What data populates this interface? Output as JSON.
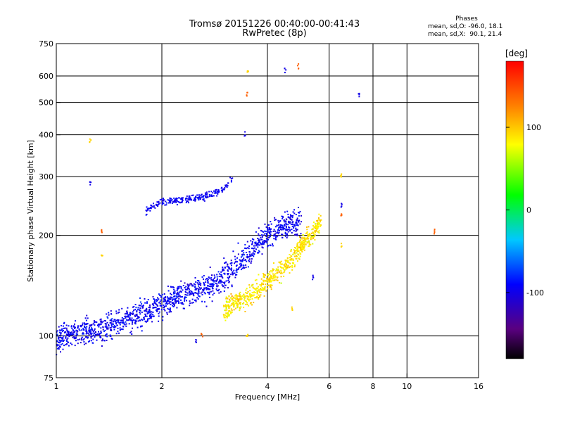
{
  "header": {
    "title_line1": "Tromsø 20151226 00:40:00-00:41:43",
    "title_line2": "RwPretec (8p)",
    "phases_label": "Phases",
    "phase_o": "mean, sd,O: -96.0, 18.1",
    "phase_x": "mean, sd,X:  90.1, 21.4"
  },
  "colorbar": {
    "unit": "[deg]",
    "ticks": [
      "100",
      "0",
      "-100"
    ],
    "tick_values": [
      100,
      0,
      -100
    ],
    "range": [
      -180,
      180
    ]
  },
  "chart_data": {
    "type": "scatter",
    "title": "",
    "xlabel": "Frequency [MHz]",
    "ylabel": "Stationary phase Virtual Height [km]",
    "x_scale": "log",
    "y_scale": "log",
    "xlim": [
      1,
      16
    ],
    "ylim": [
      75,
      750
    ],
    "x_ticks": [
      1,
      2,
      4,
      6,
      8,
      10,
      16
    ],
    "x_tick_labels": [
      "1",
      "2",
      "4",
      "6",
      "8",
      "10",
      "16"
    ],
    "y_ticks": [
      75,
      100,
      200,
      300,
      400,
      500,
      600,
      750
    ],
    "y_tick_labels": [
      "75",
      "100",
      "200",
      "300",
      "400",
      "500",
      "600",
      "750"
    ],
    "grid": true,
    "color_encoding": "phase in degrees (rainbow, -180 black to +180 red)",
    "o_mode_trace": [
      [
        1.0,
        97
      ],
      [
        1.05,
        100
      ],
      [
        1.12,
        101
      ],
      [
        1.2,
        102
      ],
      [
        1.3,
        104
      ],
      [
        1.45,
        108
      ],
      [
        1.6,
        112
      ],
      [
        1.8,
        118
      ],
      [
        2.0,
        125
      ],
      [
        2.2,
        132
      ],
      [
        2.5,
        137
      ],
      [
        2.8,
        143
      ],
      [
        3.0,
        150
      ],
      [
        3.2,
        160
      ],
      [
        3.4,
        170
      ],
      [
        3.6,
        180
      ],
      [
        3.8,
        192
      ],
      [
        4.0,
        200
      ],
      [
        4.3,
        210
      ],
      [
        4.6,
        215
      ],
      [
        5.0,
        220
      ]
    ],
    "x_mode_trace": [
      [
        3.0,
        120
      ],
      [
        3.2,
        125
      ],
      [
        3.5,
        130
      ],
      [
        3.8,
        138
      ],
      [
        4.0,
        145
      ],
      [
        4.3,
        155
      ],
      [
        4.6,
        165
      ],
      [
        4.9,
        180
      ],
      [
        5.2,
        195
      ],
      [
        5.5,
        210
      ],
      [
        5.7,
        222
      ]
    ],
    "f_layer_trace": [
      [
        1.8,
        235
      ],
      [
        1.9,
        245
      ],
      [
        2.0,
        252
      ],
      [
        2.3,
        255
      ],
      [
        2.6,
        260
      ],
      [
        2.9,
        270
      ],
      [
        3.1,
        285
      ],
      [
        3.2,
        300
      ]
    ],
    "sporadic_points": [
      [
        1.25,
        385
      ],
      [
        1.25,
        290
      ],
      [
        1.35,
        205
      ],
      [
        1.35,
        175
      ],
      [
        3.45,
        400
      ],
      [
        3.5,
        530
      ],
      [
        3.52,
        620
      ],
      [
        4.5,
        625
      ],
      [
        4.9,
        640
      ],
      [
        6.5,
        300
      ],
      [
        6.5,
        245
      ],
      [
        6.5,
        230
      ],
      [
        6.5,
        185
      ],
      [
        7.3,
        530
      ],
      [
        12.0,
        205
      ],
      [
        3.5,
        100
      ],
      [
        2.5,
        97
      ],
      [
        2.6,
        100
      ],
      [
        4.7,
        120
      ],
      [
        5.4,
        150
      ]
    ]
  }
}
